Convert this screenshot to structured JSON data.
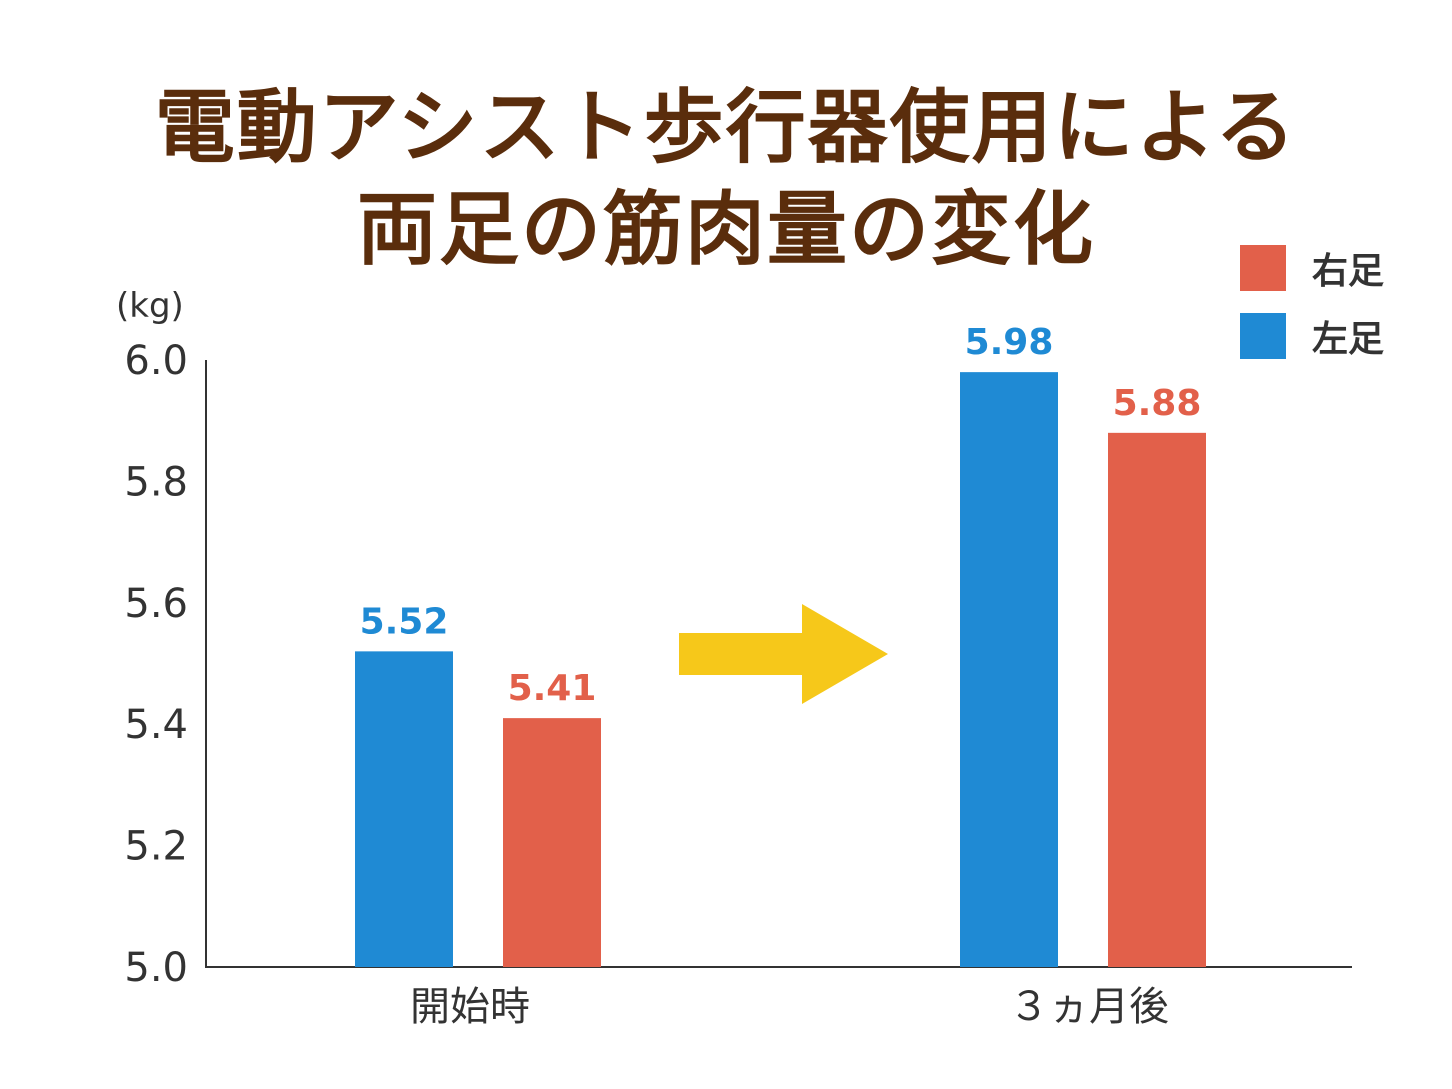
{
  "title_lines": [
    "電動アシスト歩行器使用による",
    "両足の筋肉量の変化"
  ],
  "legend": [
    {
      "label": "右足",
      "color": "#e2604a"
    },
    {
      "label": "左足",
      "color": "#1f8ad4"
    }
  ],
  "chart_data": {
    "type": "bar",
    "title": "電動アシスト歩行器使用による両足の筋肉量の変化",
    "ylabel": "(kg)",
    "xlabel": "",
    "ylim": [
      5.0,
      6.0
    ],
    "yticks": [
      "5.0",
      "5.2",
      "5.4",
      "5.6",
      "5.8",
      "6.0"
    ],
    "categories": [
      "開始時",
      "３ヵ月後"
    ],
    "series": [
      {
        "name": "左足",
        "color": "#1f8ad4",
        "values": [
          5.52,
          5.98
        ],
        "labels": [
          "5.52",
          "5.98"
        ]
      },
      {
        "name": "右足",
        "color": "#e2604a",
        "values": [
          5.41,
          5.88
        ],
        "labels": [
          "5.41",
          "5.88"
        ]
      }
    ],
    "annotation": {
      "type": "arrow",
      "color": "#f6c81a",
      "from_category": "開始時",
      "to_category": "３ヵ月後"
    },
    "grid": false,
    "legend_position": "top-right"
  }
}
